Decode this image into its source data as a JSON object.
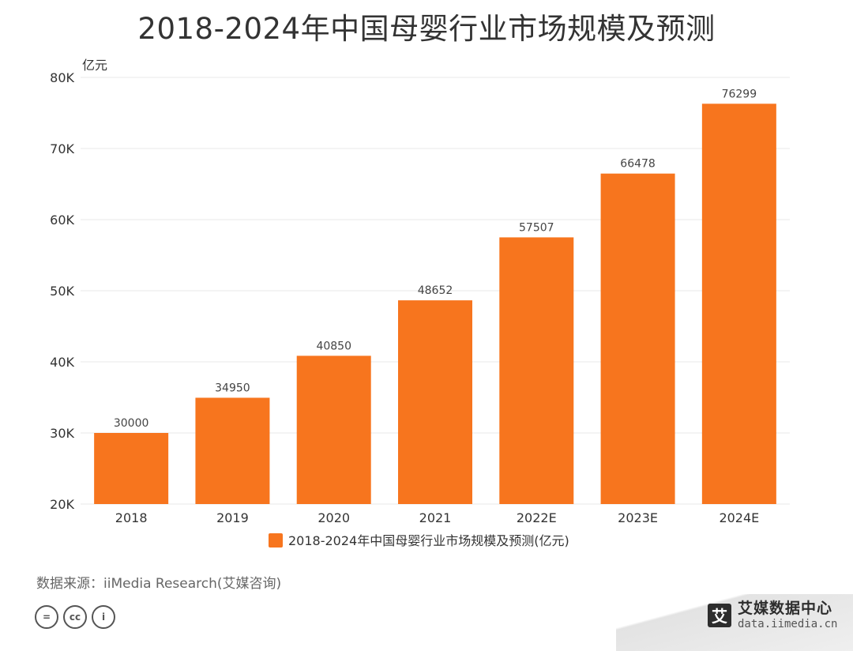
{
  "chart_data": {
    "type": "bar",
    "title": "2018-2024年中国母婴行业市场规模及预测",
    "ylabel": "亿元",
    "xlabel": "",
    "categories": [
      "2018",
      "2019",
      "2020",
      "2021",
      "2022E",
      "2023E",
      "2024E"
    ],
    "values": [
      30000,
      34950,
      40850,
      48652,
      57507,
      66478,
      76299
    ],
    "data_labels": [
      "30000",
      "34950",
      "40850",
      "48652",
      "57507",
      "66478",
      "76299"
    ],
    "ylim": [
      20000,
      80000
    ],
    "yticks": [
      20000,
      30000,
      40000,
      50000,
      60000,
      70000,
      80000
    ],
    "ytick_labels": [
      "20K",
      "30K",
      "40K",
      "50K",
      "60K",
      "70K",
      "80K"
    ],
    "series": [
      {
        "name": "2018-2024年中国母婴行业市场规模及预测(亿元)",
        "values": [
          30000,
          34950,
          40850,
          48652,
          57507,
          66478,
          76299
        ],
        "color": "#F7751E"
      }
    ],
    "legend_position": "bottom",
    "grid": true
  },
  "source_text": "数据来源：iiMedia Research(艾媒咨询)",
  "license_icons": [
    "equals-icon",
    "cc-icon",
    "person-icon"
  ],
  "license_icon_glyphs": [
    "=",
    "cc",
    "i"
  ],
  "brand": {
    "logo_char": "艾",
    "name": "艾媒数据中心",
    "url": "data.iimedia.cn"
  },
  "colors": {
    "bar": "#F7751E",
    "grid": "#e8e8e8",
    "axis_text": "#333333"
  }
}
